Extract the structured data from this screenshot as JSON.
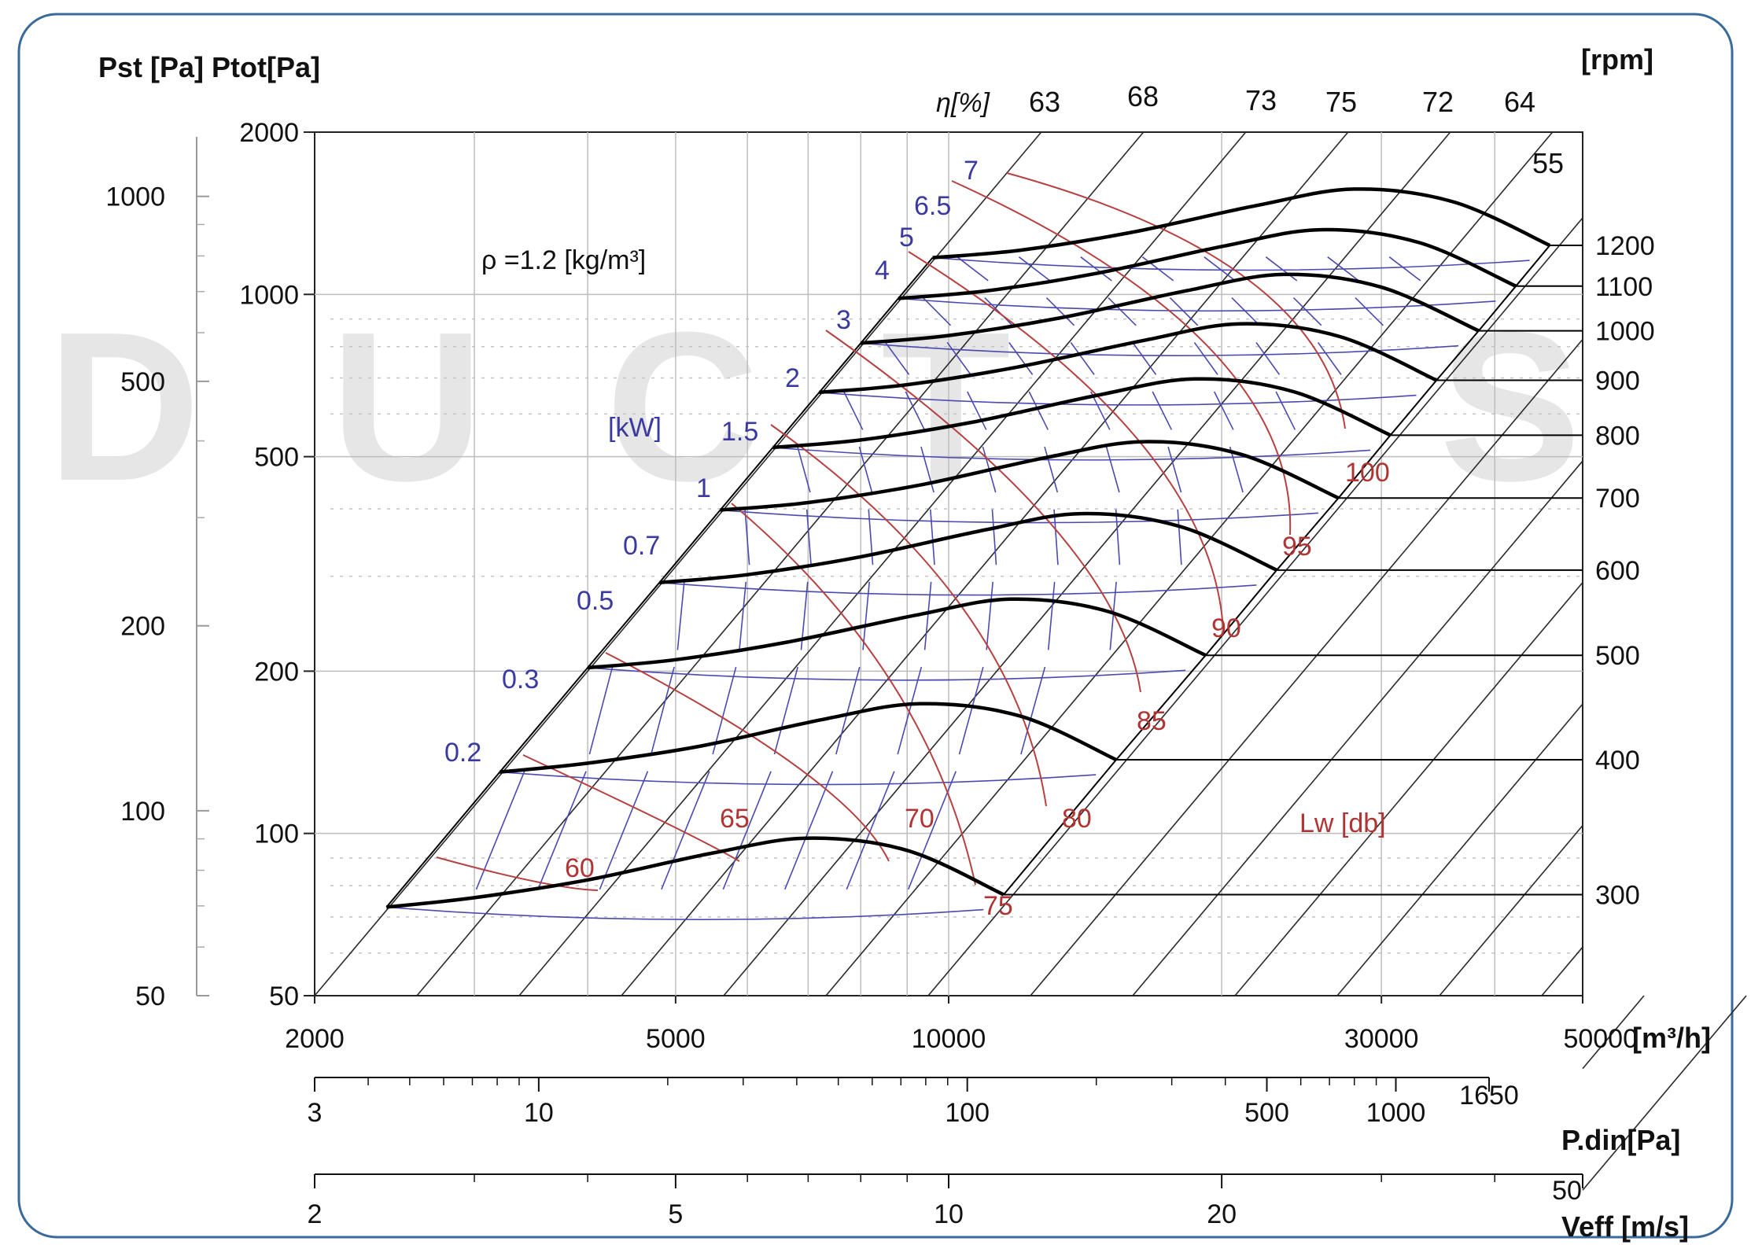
{
  "chart_data": {
    "type": "line",
    "axis_labels": {
      "pst_ptot": "Pst [Pa]  Ptot[Pa]",
      "rpm": "[rpm]",
      "flow": "[m³/h]",
      "pdin": "P.din[Pa]",
      "veff": "Veff [m/s]",
      "eta": "η[%]",
      "power": "[kW]",
      "density": "ρ =1.2 [kg/m³]",
      "noise": "Lw [db]"
    },
    "flow_axis": {
      "range": [
        2000,
        50000
      ],
      "scale": "log",
      "tick_labels": [
        "2000",
        "5000",
        "10000",
        "30000",
        "50000"
      ],
      "tick_values": [
        2000,
        5000,
        10000,
        30000,
        50000
      ]
    },
    "ptot_axis": {
      "range": [
        50,
        2000
      ],
      "scale": "log",
      "tick_labels": [
        "2000",
        "1000",
        "500",
        "200",
        "100",
        "50"
      ],
      "tick_values": [
        2000,
        1000,
        500,
        200,
        100,
        50
      ]
    },
    "pst_axis": {
      "scale": "log",
      "tick_labels": [
        "1000",
        "500",
        "200",
        "100",
        "50"
      ],
      "tick_values": [
        1000,
        500,
        200,
        100,
        50
      ]
    },
    "pdin_axis": {
      "range": [
        3,
        1650
      ],
      "scale": "log",
      "tick_labels": [
        "3",
        "10",
        "100",
        "500",
        "1000",
        "1650"
      ],
      "tick_values": [
        3,
        10,
        100,
        500,
        1000,
        1650
      ]
    },
    "veff_axis": {
      "range": [
        2,
        50
      ],
      "scale": "log",
      "tick_labels": [
        "2",
        "5",
        "10",
        "20",
        "50"
      ],
      "tick_values": [
        2,
        5,
        10,
        20,
        50
      ]
    },
    "efficiency_labels": [
      "63",
      "68",
      "73",
      "75",
      "72",
      "64",
      "55"
    ],
    "speed_curves": [
      {
        "rpm": "300",
        "points": [
          [
            2400,
            73
          ],
          [
            3000,
            76
          ],
          [
            4000,
            82
          ],
          [
            5500,
            92
          ],
          [
            7000,
            98
          ],
          [
            9000,
            93
          ],
          [
            11500,
            77
          ]
        ],
        "max_flow": 11500,
        "end_ptot": 77
      },
      {
        "rpm": "400",
        "points": [
          [
            3200,
            130
          ],
          [
            4000,
            135
          ],
          [
            5300,
            145
          ],
          [
            7300,
            163
          ],
          [
            9300,
            174
          ],
          [
            12000,
            165
          ],
          [
            15300,
            137
          ]
        ],
        "max_flow": 15300,
        "end_ptot": 137
      },
      {
        "rpm": "500",
        "points": [
          [
            4000,
            203
          ],
          [
            5000,
            210
          ],
          [
            6600,
            226
          ],
          [
            9200,
            254
          ],
          [
            11700,
            272
          ],
          [
            15000,
            258
          ],
          [
            19200,
            214
          ]
        ],
        "max_flow": 19200,
        "end_ptot": 214
      },
      {
        "rpm": "600",
        "points": [
          [
            4800,
            292
          ],
          [
            6000,
            302
          ],
          [
            8000,
            326
          ],
          [
            11000,
            366
          ],
          [
            14000,
            392
          ],
          [
            18000,
            371
          ],
          [
            23000,
            308
          ]
        ],
        "max_flow": 23000,
        "end_ptot": 308
      },
      {
        "rpm": "700",
        "points": [
          [
            5600,
            398
          ],
          [
            7000,
            411
          ],
          [
            9300,
            443
          ],
          [
            12800,
            498
          ],
          [
            16400,
            533
          ],
          [
            21000,
            505
          ],
          [
            26900,
            419
          ]
        ],
        "max_flow": 26900,
        "end_ptot": 419
      },
      {
        "rpm": "800",
        "points": [
          [
            6400,
            520
          ],
          [
            8000,
            537
          ],
          [
            10600,
            579
          ],
          [
            14600,
            650
          ],
          [
            18700,
            697
          ],
          [
            24000,
            660
          ],
          [
            30700,
            548
          ]
        ],
        "max_flow": 30700,
        "end_ptot": 548
      },
      {
        "rpm": "900",
        "points": [
          [
            7200,
            658
          ],
          [
            9000,
            680
          ],
          [
            11900,
            733
          ],
          [
            16500,
            823
          ],
          [
            21000,
            882
          ],
          [
            27000,
            835
          ],
          [
            34500,
            693
          ]
        ],
        "max_flow": 34500,
        "end_ptot": 693
      },
      {
        "rpm": "1000",
        "points": [
          [
            8000,
            812
          ],
          [
            10000,
            839
          ],
          [
            13300,
            905
          ],
          [
            18300,
            1016
          ],
          [
            23400,
            1089
          ],
          [
            30000,
            1031
          ],
          [
            38400,
            856
          ]
        ],
        "max_flow": 38400,
        "end_ptot": 856
      },
      {
        "rpm": "1100",
        "points": [
          [
            8800,
            983
          ],
          [
            11000,
            1015
          ],
          [
            14600,
            1095
          ],
          [
            20100,
            1229
          ],
          [
            25700,
            1318
          ],
          [
            33000,
            1248
          ],
          [
            42200,
            1036
          ]
        ],
        "max_flow": 42200,
        "end_ptot": 1036
      },
      {
        "rpm": "1200",
        "points": [
          [
            9600,
            1170
          ],
          [
            12000,
            1208
          ],
          [
            15900,
            1303
          ],
          [
            21900,
            1463
          ],
          [
            28000,
            1568
          ],
          [
            36000,
            1485
          ],
          [
            46000,
            1233
          ]
        ],
        "max_flow": 46000,
        "end_ptot": 1233
      }
    ],
    "power_labels": [
      "7",
      "6.5",
      "5",
      "4",
      "3",
      "2",
      "1.5",
      "1",
      "0.7",
      "0.5",
      "0.3",
      "0.2"
    ],
    "noise_labels": [
      "60",
      "65",
      "70",
      "75",
      "80",
      "85",
      "90",
      "95",
      "100"
    ]
  }
}
